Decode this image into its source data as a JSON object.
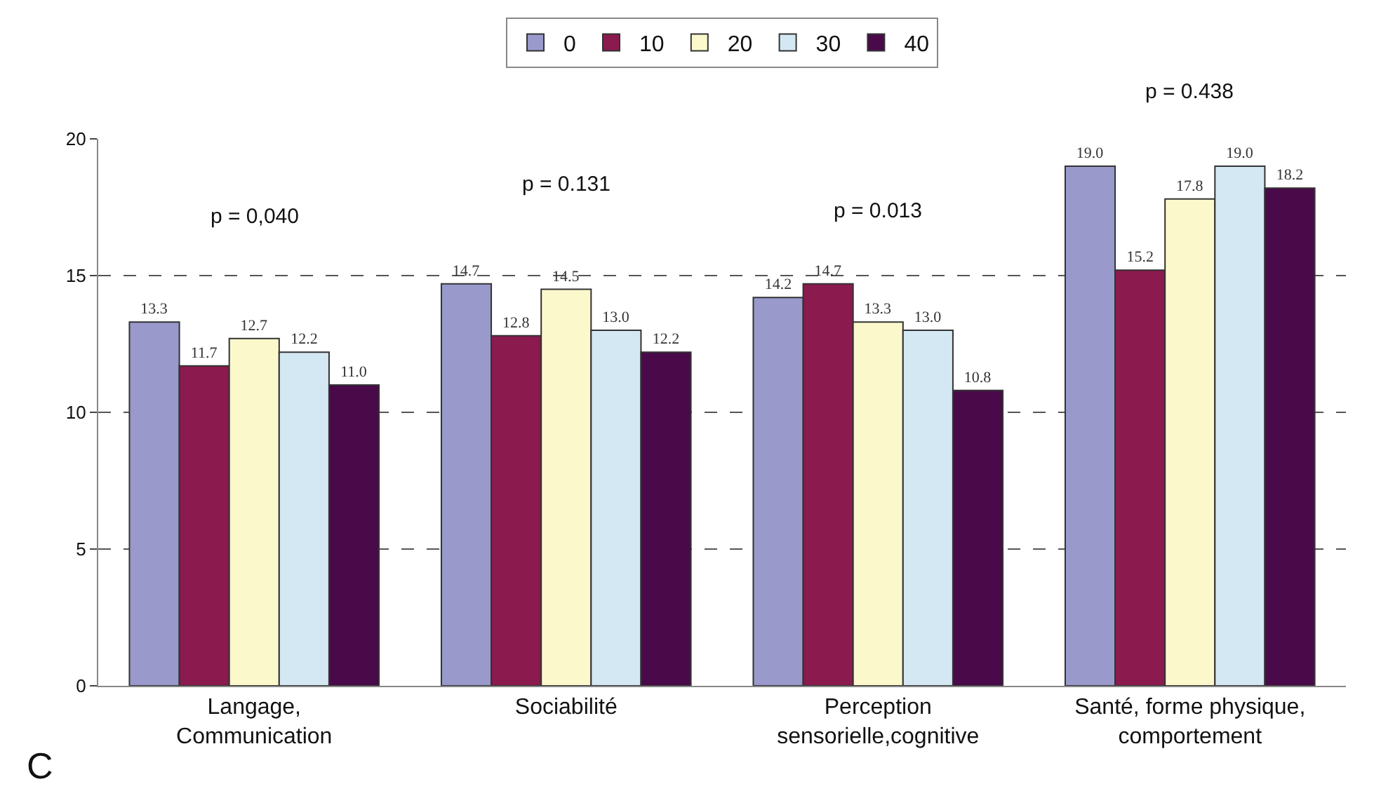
{
  "chart_data": {
    "type": "bar",
    "categories": [
      "Langage,\nCommunication",
      "Sociabilité",
      "Perception\nsensorielle,cognitive",
      "Santé, forme physique,\ncomportement"
    ],
    "series": [
      {
        "name": "0",
        "color": "#9999cc",
        "values": [
          13.3,
          14.7,
          14.2,
          19.0
        ],
        "value_labels": [
          "13.3",
          "14.7",
          "14.2",
          "19.0"
        ]
      },
      {
        "name": "10",
        "color": "#8b1a4e",
        "values": [
          11.7,
          12.8,
          14.7,
          15.2
        ],
        "value_labels": [
          "11.7",
          "12.8",
          "14.7",
          "15.2"
        ]
      },
      {
        "name": "20",
        "color": "#fbf8cc",
        "values": [
          12.7,
          14.5,
          13.3,
          17.8
        ],
        "value_labels": [
          "12.7",
          "14.5",
          "13.3",
          "17.8"
        ]
      },
      {
        "name": "30",
        "color": "#d4e8f4",
        "values": [
          12.2,
          13.0,
          13.0,
          19.0
        ],
        "value_labels": [
          "12.2",
          "13.0",
          "13.0",
          "19.0"
        ]
      },
      {
        "name": "40",
        "color": "#4a0a4a",
        "values": [
          11.0,
          12.2,
          10.8,
          18.2
        ],
        "value_labels": [
          "11.0",
          "12.2",
          "10.8",
          "18.2"
        ]
      }
    ],
    "ylim": [
      0,
      20
    ],
    "yticks": [
      0,
      5,
      10,
      15,
      20
    ],
    "grid": "y",
    "line_style": "dashed",
    "legend": "top",
    "annotations": [
      "p = 0,040",
      "p = 0.131",
      "p = 0.013",
      "p = 0.438",
      "C"
    ]
  }
}
